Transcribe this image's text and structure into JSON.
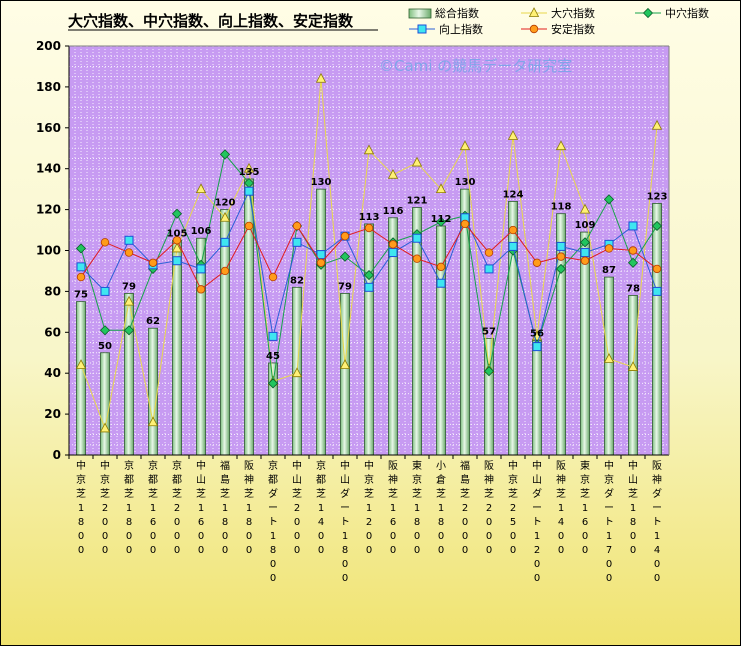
{
  "chart_data": {
    "type": "bar",
    "title": "大穴指数、中穴指数、向上指数、安定指数",
    "watermark": "©Cami の競馬データ研究室",
    "ylim": [
      0,
      200
    ],
    "yticks": [
      0,
      20,
      40,
      60,
      80,
      100,
      120,
      140,
      160,
      180,
      200
    ],
    "grid": true,
    "legend_position": "top-right",
    "categories": [
      "中京芝1800",
      "中京芝2000",
      "京都芝1800",
      "京都芝1600",
      "京都芝2000",
      "中山芝1600",
      "福島芝1800",
      "阪神芝1800",
      "京都ダート1800",
      "中山芝2000",
      "京都芝1400",
      "中山ダート1800",
      "中京芝1200",
      "阪神芝1600",
      "東京芝1800",
      "小倉芝1800",
      "福島芝2000",
      "阪神芝2000",
      "中京芝2500",
      "中山ダート1200",
      "阪神芝1400",
      "東京芝1600",
      "中京ダート1700",
      "中山芝1800",
      "阪神ダート1400"
    ],
    "series": [
      {
        "name": "総合指数",
        "kind": "bar",
        "color": "#9fd29f",
        "values": [
          75,
          50,
          79,
          62,
          105,
          106,
          120,
          135,
          45,
          82,
          130,
          79,
          113,
          116,
          121,
          112,
          130,
          57,
          124,
          56,
          118,
          109,
          87,
          78,
          123
        ]
      },
      {
        "name": "大穴指数",
        "kind": "line",
        "color": "#e8d84a",
        "marker": "triangle",
        "values": [
          44,
          13,
          75,
          16,
          101,
          130,
          116,
          140,
          36,
          40,
          184,
          44,
          149,
          137,
          143,
          130,
          151,
          42,
          156,
          58,
          151,
          120,
          47,
          43,
          161
        ]
      },
      {
        "name": "中穴指数",
        "kind": "line",
        "color": "#16a34a",
        "marker": "diamond",
        "values": [
          101,
          61,
          61,
          91,
          118,
          93,
          147,
          133,
          35,
          112,
          93,
          97,
          88,
          104,
          108,
          114,
          117,
          41,
          100,
          54,
          91,
          104,
          125,
          94,
          112
        ]
      },
      {
        "name": "向上指数",
        "kind": "line",
        "color": "#2a5fd6",
        "marker": "square",
        "values": [
          92,
          80,
          105,
          93,
          95,
          91,
          104,
          129,
          58,
          104,
          98,
          107,
          82,
          99,
          106,
          84,
          116,
          91,
          102,
          53,
          102,
          99,
          103,
          112,
          80
        ]
      },
      {
        "name": "安定指数",
        "kind": "line",
        "color": "#e11d1d",
        "marker": "circle",
        "values": [
          87,
          104,
          99,
          94,
          105,
          81,
          90,
          112,
          87,
          112,
          94,
          107,
          111,
          103,
          96,
          92,
          113,
          99,
          110,
          94,
          97,
          95,
          101,
          100,
          91
        ]
      }
    ]
  },
  "colors": {
    "plot_bg": "#c79bf2",
    "grid": "#f6eefd",
    "watermark": "#6aa6e6",
    "bar_label": "#000000"
  }
}
